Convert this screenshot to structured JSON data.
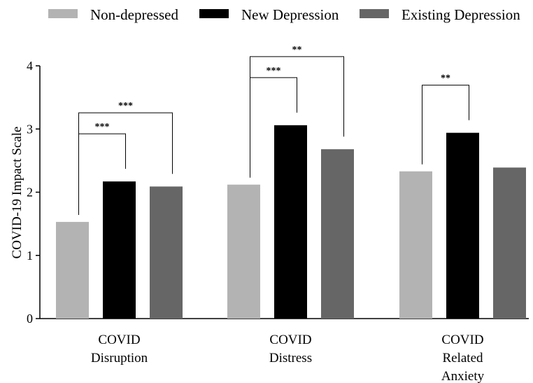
{
  "chart_data": {
    "type": "bar",
    "title": "",
    "xlabel": "",
    "ylabel": "COVID-19 Impact Scale",
    "ylim": [
      0,
      4
    ],
    "yticks": [
      0,
      1,
      2,
      3,
      4
    ],
    "grid": false,
    "legend_position": "top",
    "categories": [
      [
        "COVID",
        "Disruption"
      ],
      [
        "COVID",
        "Distress"
      ],
      [
        "COVID",
        "Related",
        "Anxiety"
      ]
    ],
    "series": [
      {
        "name": "Non-depressed",
        "color": "#b3b3b3",
        "values": [
          1.53,
          2.12,
          2.33
        ]
      },
      {
        "name": "New Depression",
        "color": "#000000",
        "values": [
          2.17,
          3.06,
          2.94
        ]
      },
      {
        "name": "Existing Depression",
        "color": "#666666",
        "values": [
          2.09,
          2.68,
          2.39
        ]
      }
    ],
    "significance": [
      {
        "group": 0,
        "from": 0,
        "to": 1,
        "label": "***"
      },
      {
        "group": 0,
        "from": 0,
        "to": 2,
        "label": "***"
      },
      {
        "group": 1,
        "from": 0,
        "to": 1,
        "label": "***"
      },
      {
        "group": 1,
        "from": 0,
        "to": 2,
        "label": "**"
      },
      {
        "group": 2,
        "from": 0,
        "to": 1,
        "label": "**"
      }
    ]
  }
}
